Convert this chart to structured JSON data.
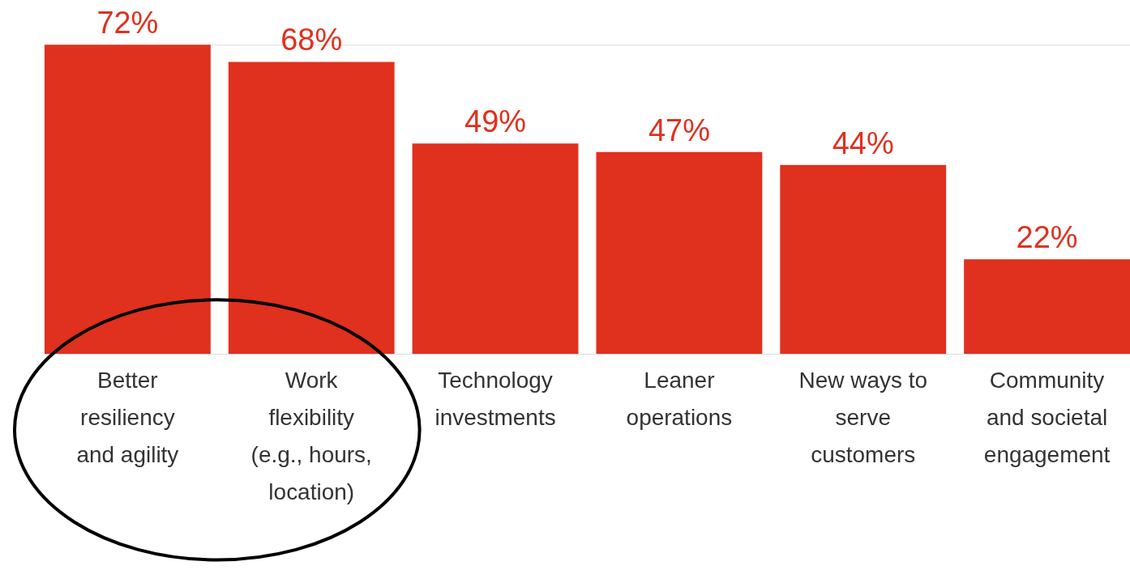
{
  "chart_data": {
    "type": "bar",
    "categories": [
      "Better resiliency and agility",
      "Work flexibility (e.g., hours, location)",
      "Technology investments",
      "Leaner operations",
      "New ways to serve customers",
      "Community and societal engagement"
    ],
    "values": [
      72,
      68,
      49,
      47,
      44,
      22
    ],
    "value_labels": [
      "72%",
      "68%",
      "49%",
      "47%",
      "44%",
      "22%"
    ],
    "color": "#e0301e",
    "grid": false
  }
}
